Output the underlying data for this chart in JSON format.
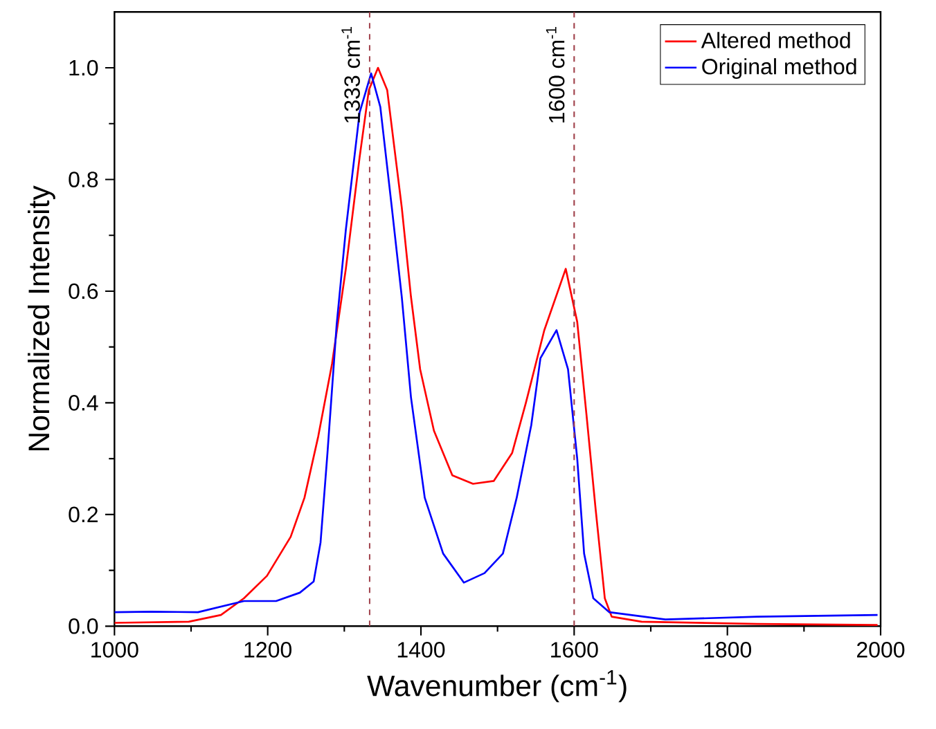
{
  "chart_data": {
    "type": "line",
    "xlabel": "Wavenumber (cm$^{-1}$)",
    "ylabel": "Normalized Intensity",
    "xlim": [
      1000,
      2000
    ],
    "xticks": [
      1000,
      1200,
      1400,
      1600,
      1800,
      2000
    ],
    "ylim": [
      0,
      1.1
    ],
    "yticks": [
      {
        "value": 0,
        "label": "0.0"
      },
      0.2,
      0.4,
      0.6,
      0.8,
      {
        "value": 1,
        "label": "1.0"
      }
    ],
    "legend": "top right",
    "marker": "none",
    "line_style": "solid",
    "grid": false,
    "ref_lines": [
      {
        "axis": "x",
        "value": 1333,
        "label": "1333 cm$^{-1}$",
        "color": "#a0404a",
        "line_style": "dashed"
      },
      {
        "axis": "x",
        "value": 1600,
        "label": "1600 cm$^{-1}$",
        "color": "#a0404a",
        "line_style": "dashed"
      }
    ],
    "series": [
      {
        "name": "Altered method",
        "color": "#ff0000",
        "x": [
          1000,
          1097,
          1139,
          1169,
          1199,
          1230,
          1248,
          1266,
          1284,
          1302,
          1320,
          1332,
          1344,
          1356,
          1375,
          1387,
          1399,
          1417,
          1441,
          1468,
          1495,
          1519,
          1537,
          1561,
          1589,
          1604,
          1616,
          1628,
          1640,
          1649,
          1688,
          1839,
          1996
        ],
        "values": [
          0.006,
          0.008,
          0.02,
          0.05,
          0.09,
          0.16,
          0.23,
          0.34,
          0.47,
          0.64,
          0.84,
          0.96,
          1.0,
          0.96,
          0.75,
          0.59,
          0.46,
          0.35,
          0.27,
          0.255,
          0.26,
          0.31,
          0.4,
          0.53,
          0.64,
          0.545,
          0.38,
          0.21,
          0.05,
          0.017,
          0.008,
          0.004,
          0.002
        ]
      },
      {
        "name": "Original method",
        "color": "#0000ff",
        "x": [
          1000,
          1048,
          1109,
          1169,
          1211,
          1242,
          1260,
          1269,
          1278,
          1290,
          1302,
          1320,
          1335,
          1347,
          1362,
          1375,
          1387,
          1405,
          1429,
          1456,
          1483,
          1507,
          1525,
          1544,
          1556,
          1577,
          1592,
          1604,
          1613,
          1625,
          1646,
          1719,
          1839,
          1996
        ],
        "values": [
          0.025,
          0.026,
          0.025,
          0.045,
          0.045,
          0.06,
          0.08,
          0.15,
          0.31,
          0.54,
          0.71,
          0.92,
          0.99,
          0.93,
          0.75,
          0.59,
          0.41,
          0.23,
          0.13,
          0.078,
          0.095,
          0.13,
          0.23,
          0.36,
          0.48,
          0.53,
          0.46,
          0.3,
          0.13,
          0.05,
          0.025,
          0.012,
          0.017,
          0.02
        ]
      }
    ]
  }
}
